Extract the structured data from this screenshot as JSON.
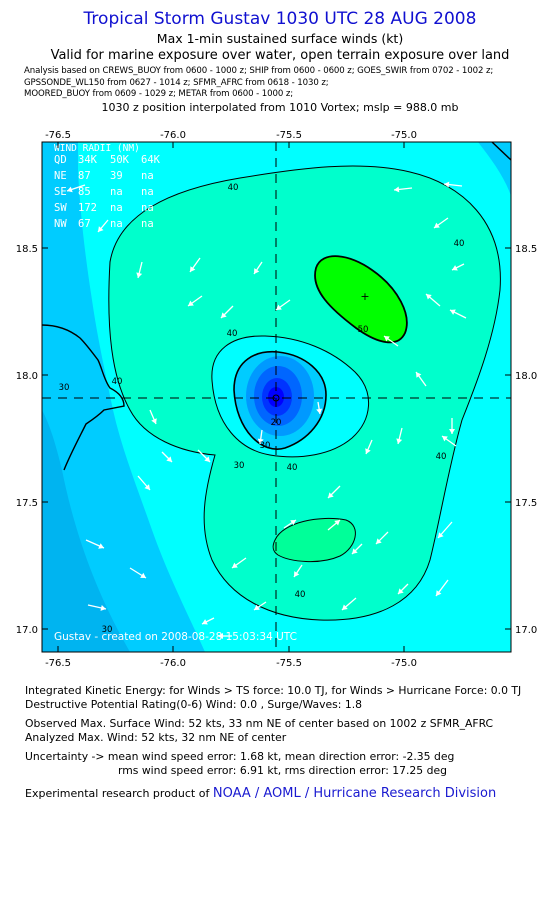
{
  "header": {
    "title": "Tropical Storm Gustav 1030 UTC 28 AUG 2008",
    "subtitle": "Max 1-min sustained surface winds (kt)",
    "valid": "Valid for marine exposure over water, open terrain exposure over land",
    "analysis_line1": "Analysis based on  CREWS_BUOY from 0600 - 1000 z;  SHIP from 0600 - 0600 z;  GOES_SWIR from 0702 - 1002 z;",
    "analysis_line2": "GPSSONDE_WL150 from 0627 - 1014 z;  SFMR_AFRC from 0618 - 1030 z;",
    "analysis_line3": "MOORED_BUOY from 0609 - 1029 z;  METAR from 0600 - 1000 z;",
    "position_line": "1030 z position interpolated from 1010 Vortex; mslp = 988.0 mb"
  },
  "map": {
    "lon_ticks": [
      "-76.5",
      "-76.0",
      "-75.5",
      "-75.0"
    ],
    "lat_ticks": [
      "18.5",
      "18.0",
      "17.5",
      "17.0"
    ],
    "contour_labels": [
      "40",
      "40",
      "40",
      "40",
      "40",
      "50",
      "30",
      "30",
      "20",
      "40",
      "40",
      "30",
      "30"
    ],
    "credit": "Gustav - created on 2008-08-28 15:03:34 UTC",
    "center_lon": -75.54,
    "center_lat": 17.91,
    "max_wind_lon": -75.15,
    "max_wind_lat": 18.31,
    "colors": {
      "c20": "#00ccff",
      "c30": "#00ffff",
      "c40": "#00ffcc",
      "c50": "#00ff00",
      "land": "#00ccff",
      "core": [
        "#0000ff",
        "#0033ff",
        "#0066ff",
        "#0099ff",
        "#00ccff"
      ]
    }
  },
  "wind_radii": {
    "heading": "WIND RADII (NM)",
    "columns": [
      "QD",
      "34K",
      "50K",
      "64K"
    ],
    "rows": [
      [
        "NE",
        "87",
        "39",
        "na"
      ],
      [
        "SE",
        "85",
        "na",
        "na"
      ],
      [
        "SW",
        "172",
        "na",
        "na"
      ],
      [
        "NW",
        "67",
        "na",
        "na"
      ]
    ]
  },
  "footer": {
    "ike": "Integrated Kinetic Energy:  for Winds > TS force: 10.0 TJ,  for Winds > Hurricane Force: 0.0 TJ",
    "dpr": "Destructive Potential Rating(0-6)   Wind: 0.0 , Surge/Waves: 1.8",
    "observed": "Observed Max. Surface Wind: 52 kts, 33 nm NE of center based on 1002 z SFMR_AFRC",
    "analyzed": "Analyzed Max. Wind: 52 kts, 32 nm NE of center",
    "uncert1": "Uncertainty -> mean wind speed error: 1.68 kt,   mean direction error:  -2.35 deg",
    "uncert2": "rms wind speed error: 6.91 kt,   rms direction error: 17.25 deg",
    "credit_prefix": "Experimental research product of ",
    "credit_org": "NOAA / AOML / Hurricane Research Division"
  }
}
